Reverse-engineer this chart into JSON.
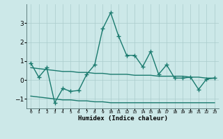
{
  "xlabel": "Humidex (Indice chaleur)",
  "x": [
    0,
    1,
    2,
    3,
    4,
    5,
    6,
    7,
    8,
    9,
    10,
    11,
    12,
    13,
    14,
    15,
    16,
    17,
    18,
    19,
    20,
    21,
    22,
    23
  ],
  "main_line": [
    0.9,
    0.15,
    0.65,
    -1.2,
    -0.45,
    -0.6,
    -0.55,
    0.3,
    0.8,
    2.7,
    3.55,
    2.3,
    1.3,
    1.3,
    0.7,
    1.5,
    0.3,
    0.8,
    0.1,
    0.1,
    0.15,
    -0.5,
    0.05,
    0.1
  ],
  "upper_band": [
    0.65,
    0.6,
    0.55,
    0.5,
    0.45,
    0.45,
    0.4,
    0.4,
    0.35,
    0.35,
    0.3,
    0.3,
    0.3,
    0.25,
    0.25,
    0.25,
    0.2,
    0.2,
    0.2,
    0.2,
    0.15,
    0.15,
    0.1,
    0.1
  ],
  "lower_band": [
    -0.85,
    -0.9,
    -0.95,
    -1.0,
    -1.05,
    -1.05,
    -1.1,
    -1.1,
    -1.15,
    -1.15,
    -1.2,
    -1.2,
    -1.2,
    -1.2,
    -1.2,
    -1.2,
    -1.2,
    -1.2,
    -1.2,
    -1.2,
    -1.2,
    -1.2,
    -1.2,
    -1.2
  ],
  "line_color": "#1a7a6e",
  "band_color": "#1a7a6e",
  "bg_color": "#cce8e8",
  "grid_color": "#aacccc",
  "ylim": [
    -1.5,
    4.0
  ],
  "yticks": [
    -1,
    0,
    1,
    2,
    3
  ],
  "marker": "+",
  "linewidth": 1.0
}
